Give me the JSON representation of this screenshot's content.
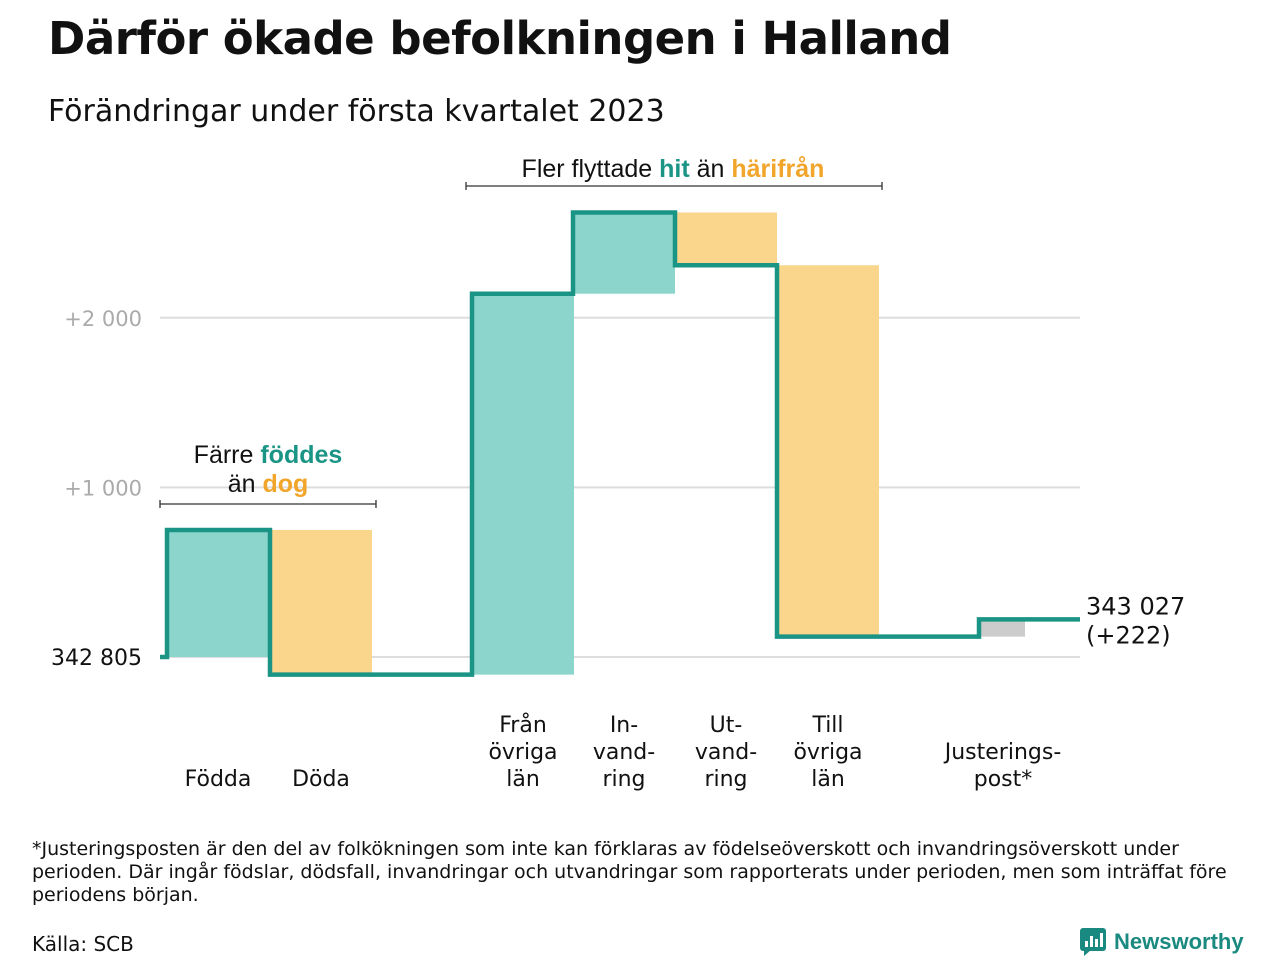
{
  "header": {
    "title": "Därför ökade befolkningen i Halland",
    "subtitle": "Förändringar under första kvartalet 2023"
  },
  "chart_data": {
    "type": "waterfall",
    "start_value": 342805,
    "start_label": "342 805",
    "end_label": "343 027",
    "end_change_label": "(+222)",
    "y_ticks": [
      {
        "value": 2000,
        "label": "+2 000"
      },
      {
        "value": 1000,
        "label": "+1 000"
      }
    ],
    "steps": [
      {
        "category": [
          "Födda"
        ],
        "change": 749,
        "kind": "in"
      },
      {
        "category": [
          "Döda"
        ],
        "change": -853,
        "kind": "out"
      },
      {
        "category": [
          "Från",
          "övriga",
          "län"
        ],
        "change": 2246,
        "kind": "in"
      },
      {
        "category": [
          "In-",
          "vand-",
          "ring"
        ],
        "change": 479,
        "kind": "in"
      },
      {
        "category": [
          "Ut-",
          "vand-",
          "ring"
        ],
        "change": -311,
        "kind": "out"
      },
      {
        "category": [
          "Till",
          "övriga",
          "län"
        ],
        "change": -2190,
        "kind": "out"
      },
      {
        "category": [
          "Justerings-",
          "post*"
        ],
        "change": 102,
        "kind": "adjust"
      }
    ],
    "colors": {
      "in": "#8cd5cc",
      "out": "#fad58c",
      "adjust": "#cccccc",
      "line": "#1a9485",
      "grid": "#dddddd",
      "axis_text": "#aaaaaa",
      "hl_in": "#1a9485",
      "hl_out": "#f2a52b"
    },
    "annotations": [
      {
        "parts": [
          {
            "text": "Färre ",
            "style": "plain"
          },
          {
            "text": "föddes",
            "style": "in"
          },
          {
            "text": "än ",
            "style": "plain",
            "newline": true
          },
          {
            "text": "dog",
            "style": "out"
          }
        ],
        "spans_steps": [
          0,
          1
        ]
      },
      {
        "parts": [
          {
            "text": "Fler flyttade ",
            "style": "plain"
          },
          {
            "text": "hit",
            "style": "in"
          },
          {
            "text": " än ",
            "style": "plain"
          },
          {
            "text": "härifrån",
            "style": "out"
          }
        ],
        "spans_steps": [
          2,
          5
        ]
      }
    ]
  },
  "footnote": "*Justeringsposten är den del av folkökningen som inte kan förklaras av födelseöverskott och invandringsöverskott under perioden. Där ingår födslar, dödsfall, invandringar och utvandringar som rapporterats under perioden, men som inträffat före periodens början.",
  "source": "Källa: SCB",
  "brand": {
    "name": "Newsworthy",
    "icon": "newsworthy-logo-icon"
  }
}
